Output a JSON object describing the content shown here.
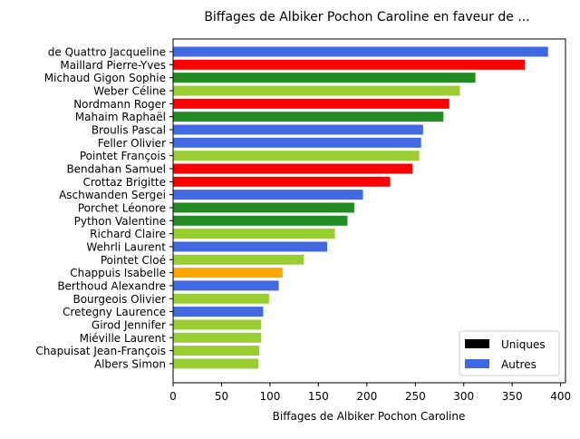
{
  "chart_data": {
    "type": "bar",
    "orientation": "horizontal",
    "title": "Biffages de Albiker Pochon Caroline en faveur de ...",
    "xlabel": "Biffages de Albiker Pochon Caroline",
    "ylabel": "",
    "xlim": [
      0,
      405
    ],
    "xticks": [
      0,
      50,
      100,
      150,
      200,
      250,
      300,
      350,
      400
    ],
    "grid": false,
    "legend_position": "bottom-right",
    "legend": [
      {
        "label": "Uniques",
        "color": "#000000"
      },
      {
        "label": "Autres",
        "color": "#4169e1"
      }
    ],
    "categories": [
      "de Quattro Jacqueline",
      "Maillard Pierre-Yves",
      "Michaud Gigon Sophie",
      "Weber Céline",
      "Nordmann Roger",
      "Mahaim Raphaël",
      "Broulis Pascal",
      "Feller Olivier",
      "Pointet François",
      "Bendahan Samuel",
      "Crottaz Brigitte",
      "Aschwanden Sergei",
      "Porchet Léonore",
      "Python Valentine",
      "Richard Claire",
      "Wehrli Laurent",
      "Pointet Cloé",
      "Chappuis Isabelle",
      "Berthoud Alexandre",
      "Bourgeois Olivier",
      "Cretegny Laurence",
      "Girod Jennifer",
      "Miéville Laurent",
      "Chapuisat Jean-François",
      "Albers Simon"
    ],
    "values": [
      387,
      363,
      312,
      296,
      285,
      279,
      258,
      256,
      254,
      247,
      224,
      196,
      187,
      180,
      167,
      159,
      135,
      113,
      109,
      99,
      93,
      91,
      91,
      89,
      88
    ],
    "colors": [
      "#4169e1",
      "#ff0000",
      "#228b22",
      "#9acd32",
      "#ff0000",
      "#228b22",
      "#4169e1",
      "#4169e1",
      "#9acd32",
      "#ff0000",
      "#ff0000",
      "#4169e1",
      "#228b22",
      "#228b22",
      "#9acd32",
      "#4169e1",
      "#9acd32",
      "#ffa500",
      "#4169e1",
      "#9acd32",
      "#4169e1",
      "#9acd32",
      "#9acd32",
      "#9acd32",
      "#9acd32"
    ]
  }
}
